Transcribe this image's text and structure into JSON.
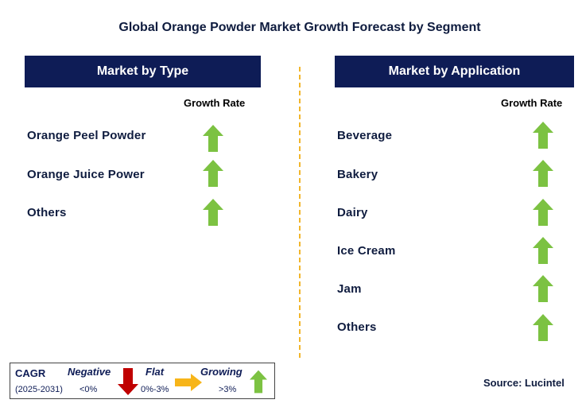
{
  "title": "Global Orange Powder Market Growth Forecast by Segment",
  "colors": {
    "header_bg": "#0e1c56",
    "growing_arrow": "#7cc242",
    "negative_arrow": "#c00000",
    "flat_arrow": "#f7b519",
    "divider": "#f2b62c"
  },
  "chart_data": {
    "type": "table",
    "title": "Global Orange Powder Market Growth Forecast by Segment",
    "segments": [
      {
        "header": "Market by Type",
        "column_label": "Growth Rate",
        "rows": [
          {
            "label": "Orange Peel Powder",
            "growth": "Growing"
          },
          {
            "label": "Orange Juice Power",
            "growth": "Growing"
          },
          {
            "label": "Others",
            "growth": "Growing"
          }
        ]
      },
      {
        "header": "Market by Application",
        "column_label": "Growth Rate",
        "rows": [
          {
            "label": "Beverage",
            "growth": "Growing"
          },
          {
            "label": "Bakery",
            "growth": "Growing"
          },
          {
            "label": "Dairy",
            "growth": "Growing"
          },
          {
            "label": "Ice Cream",
            "growth": "Growing"
          },
          {
            "label": "Jam",
            "growth": "Growing"
          },
          {
            "label": "Others",
            "growth": "Growing"
          }
        ]
      }
    ]
  },
  "legend": {
    "cagr_label": "CAGR",
    "period": "(2025-2031)",
    "negative": {
      "label": "Negative",
      "range": "<0%"
    },
    "flat": {
      "label": "Flat",
      "range": "0%-3%"
    },
    "growing": {
      "label": "Growing",
      "range": ">3%"
    }
  },
  "source": "Source: Lucintel"
}
